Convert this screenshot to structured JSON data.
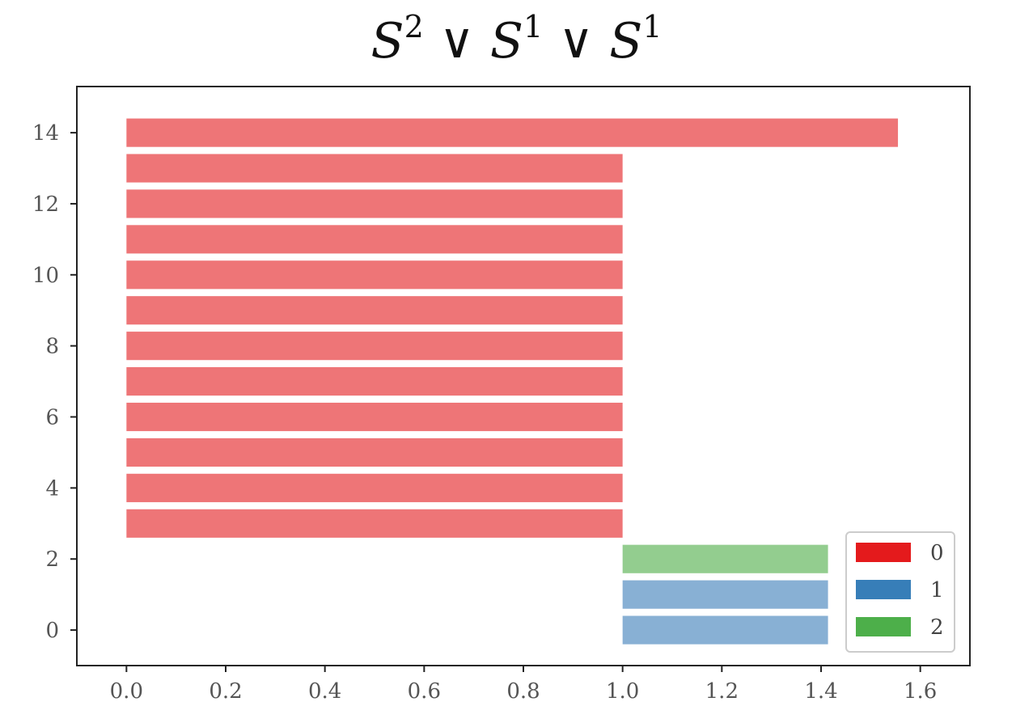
{
  "chart_data": {
    "type": "bar",
    "orientation": "horizontal",
    "title": {
      "base": "S",
      "sup1": "2",
      "op": "∨",
      "sup2": "1",
      "sup3": "1"
    },
    "xlim": [
      -0.1,
      1.7
    ],
    "ylim": [
      -1,
      15.3
    ],
    "xticks": [
      0.0,
      0.2,
      0.4,
      0.6,
      0.8,
      1.0,
      1.2,
      1.4,
      1.6
    ],
    "xtick_labels": [
      "0.0",
      "0.2",
      "0.4",
      "0.6",
      "0.8",
      "1.0",
      "1.2",
      "1.4",
      "1.6"
    ],
    "yticks": [
      0,
      2,
      4,
      6,
      8,
      10,
      12,
      14
    ],
    "ytick_labels": [
      "0",
      "2",
      "4",
      "6",
      "8",
      "10",
      "12",
      "14"
    ],
    "bar_height": 0.8,
    "bars": [
      {
        "y": 0,
        "start": 1.0,
        "end": 1.414,
        "dim": "1"
      },
      {
        "y": 1,
        "start": 1.0,
        "end": 1.414,
        "dim": "1"
      },
      {
        "y": 2,
        "start": 1.0,
        "end": 1.414,
        "dim": "2"
      },
      {
        "y": 3,
        "start": 0.0,
        "end": 1.0,
        "dim": "0"
      },
      {
        "y": 4,
        "start": 0.0,
        "end": 1.0,
        "dim": "0"
      },
      {
        "y": 5,
        "start": 0.0,
        "end": 1.0,
        "dim": "0"
      },
      {
        "y": 6,
        "start": 0.0,
        "end": 1.0,
        "dim": "0"
      },
      {
        "y": 7,
        "start": 0.0,
        "end": 1.0,
        "dim": "0"
      },
      {
        "y": 8,
        "start": 0.0,
        "end": 1.0,
        "dim": "0"
      },
      {
        "y": 9,
        "start": 0.0,
        "end": 1.0,
        "dim": "0"
      },
      {
        "y": 10,
        "start": 0.0,
        "end": 1.0,
        "dim": "0"
      },
      {
        "y": 11,
        "start": 0.0,
        "end": 1.0,
        "dim": "0"
      },
      {
        "y": 12,
        "start": 0.0,
        "end": 1.0,
        "dim": "0"
      },
      {
        "y": 13,
        "start": 0.0,
        "end": 1.0,
        "dim": "0"
      },
      {
        "y": 14,
        "start": 0.0,
        "end": 1.555,
        "dim": "0"
      }
    ],
    "bar_colors": {
      "0": "#ee7577",
      "1": "#88b0d4",
      "2": "#93cd8f"
    },
    "legend": {
      "placement": "lower-right",
      "entries": [
        {
          "label": "0",
          "color": "#e41a1c"
        },
        {
          "label": "1",
          "color": "#377eb8"
        },
        {
          "label": "2",
          "color": "#4daf4a"
        }
      ]
    },
    "grid": false
  }
}
